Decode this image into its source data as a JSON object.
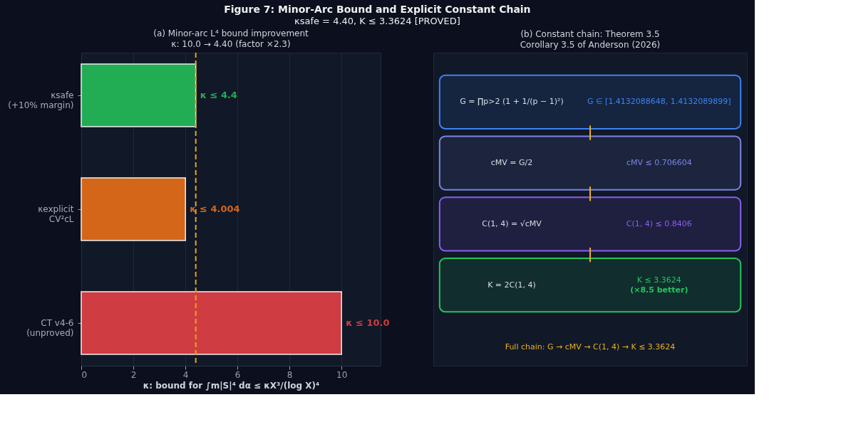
{
  "chart_data": [
    {
      "type": "bar",
      "orientation": "horizontal",
      "title": "(a) Minor-arc L⁴ bound improvement",
      "subtitle": "κ: 10.0 → 4.40 (factor ×2.3)",
      "annotations": [
        "Figure 7: Minor-Arc Bound and Explicit Constant Chain",
        "κsafe = 4.40, K ≤ 3.3624  [PROVED]"
      ],
      "categories": [
        "κsafe\n(+10% margin)",
        "κexplicit\nCV²cL",
        "CT v4-6\n(unproved)"
      ],
      "values": [
        4.4,
        4.004,
        10.0
      ],
      "colors": [
        "#22ad55",
        "#d4661a",
        "#cf3c42"
      ],
      "value_labels": [
        "κ ≤ 4.4",
        "κ ≤ 4.004",
        "κ ≤ 10.0"
      ],
      "xlabel": "κ: bound for ∫m|S|⁴ dα ≤ κX³/(log X)⁴",
      "xlim": [
        0,
        11.5
      ],
      "xticks": [
        0,
        2,
        4,
        6,
        8,
        10
      ],
      "grid": "x",
      "ref_lines": [
        {
          "axis": "x",
          "value": 4.4,
          "color": "#e8a317",
          "line_style": "dashed"
        }
      ]
    },
    {
      "type": "other",
      "title": "(b) Constant chain: Theorem 3.5",
      "subtitle": "Corollary 3.5 of Anderson (2026)",
      "colors": [
        "#3b82f6",
        "#7c83e6",
        "#8b5cf6",
        "#22c55e"
      ],
      "annotations": [
        "G = ∏p>2 (1 + 1/(p − 1)²)",
        "G ∈ [1.4132088648, 1.4132089899]",
        "cMV = G/2",
        "cMV ≤ 0.706604",
        "C(1, 4) = √cMV",
        "C(1, 4) ≤ 0.8406",
        "K = 2C(1, 4)",
        "K ≤ 3.3624\n(×8.5 better)",
        "Full chain: G → cMV → C(1, 4) → K ≤ 3.3624"
      ]
    }
  ]
}
